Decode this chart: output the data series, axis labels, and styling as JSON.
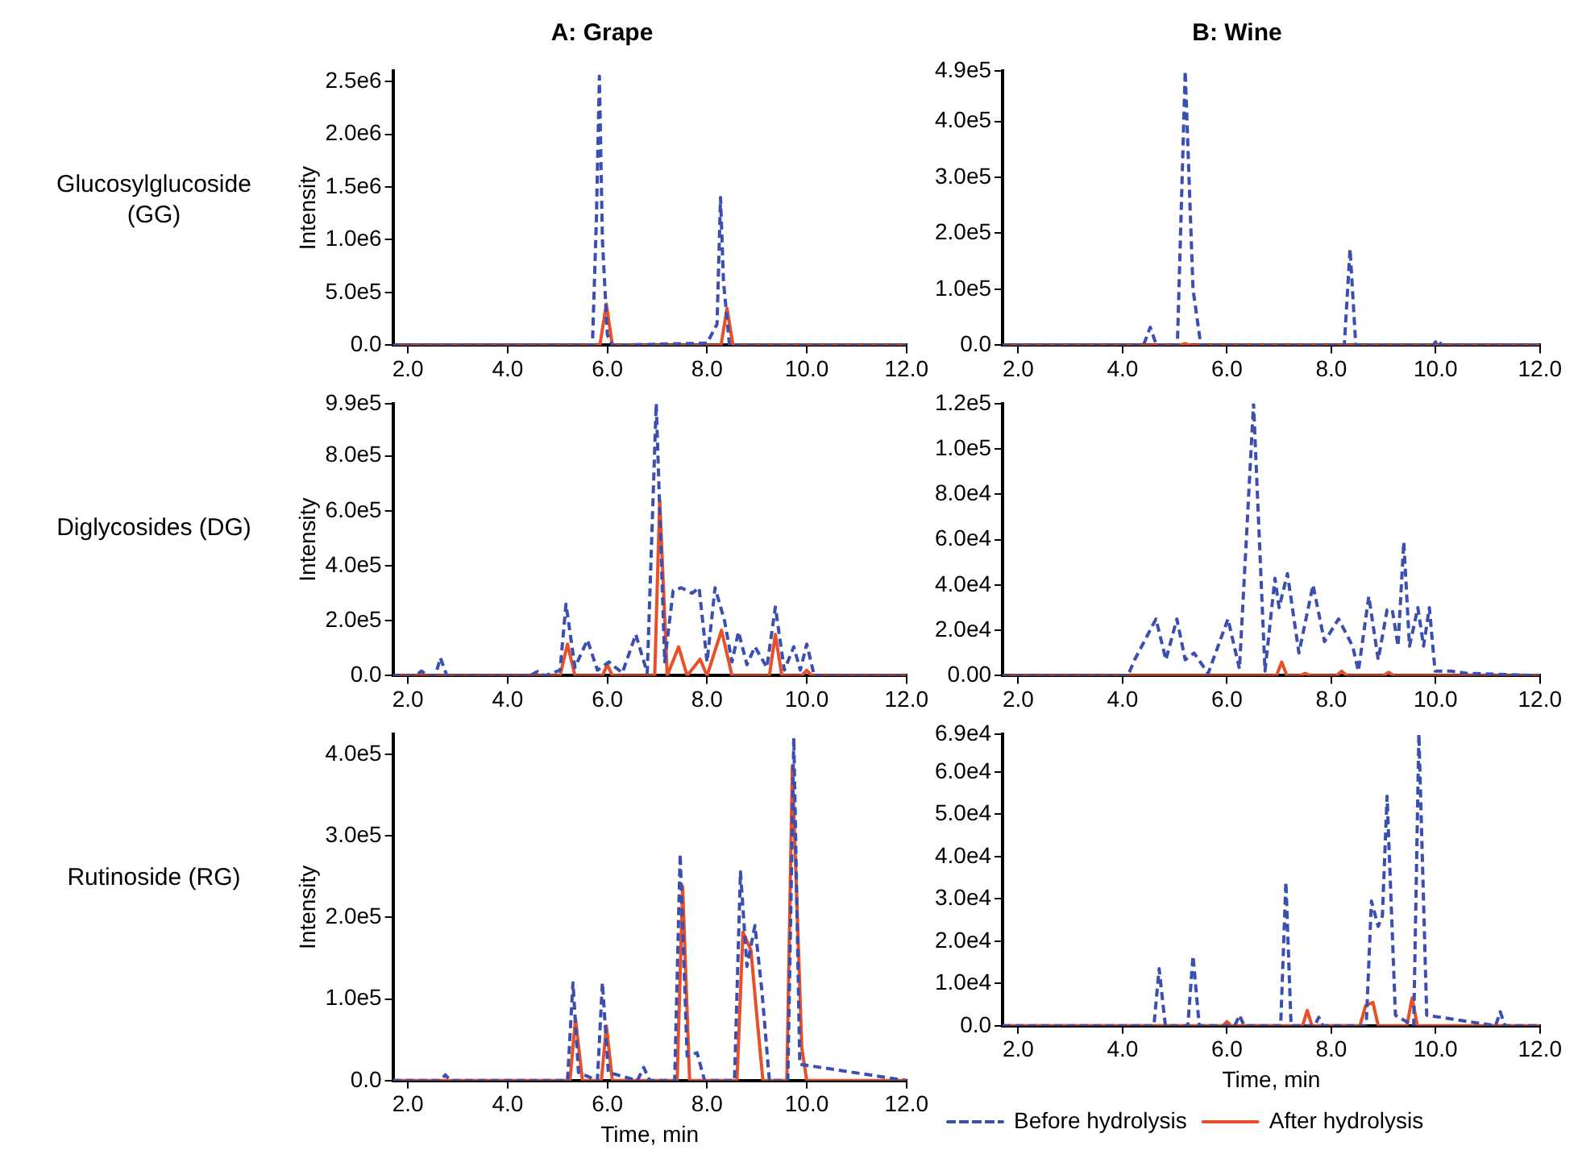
{
  "chart_data": [
    {
      "type": "line",
      "title": "A: Grape",
      "ylabel": "Intensity",
      "annotations": [
        "Glucosylglucoside (GG)"
      ],
      "xlim": [
        1.7,
        12.0
      ],
      "xticks": [
        {
          "value": 2,
          "label": "2.0"
        },
        {
          "value": 4,
          "label": "4.0"
        },
        {
          "value": 6,
          "label": "6.0"
        },
        {
          "value": 8,
          "label": "8.0"
        },
        {
          "value": 10,
          "label": "10.0"
        },
        {
          "value": 12,
          "label": "12.0"
        }
      ],
      "ylim": [
        0,
        2600000
      ],
      "yticks": [
        {
          "value": 0,
          "label": "0.0"
        },
        {
          "value": 500000,
          "label": "5.0e5"
        },
        {
          "value": 1000000,
          "label": "1.0e6"
        },
        {
          "value": 1500000,
          "label": "1.5e6"
        },
        {
          "value": 2000000,
          "label": "2.0e6"
        },
        {
          "value": 2500000,
          "label": "2.5e6"
        }
      ],
      "grid": false,
      "marker": "none",
      "series": [
        {
          "color": "#3b4fb0",
          "line_style": "dashed",
          "x": [
            1.7,
            5.7,
            5.78,
            5.84,
            5.9,
            6.0,
            6.1,
            8.0,
            8.2,
            8.27,
            8.33,
            8.45,
            12.0
          ],
          "values": [
            0,
            0,
            1200000,
            2550000,
            1000000,
            100000,
            0,
            20000,
            200000,
            1400000,
            600000,
            0,
            0
          ]
        },
        {
          "color": "#e8502a",
          "line_style": "solid",
          "x": [
            1.7,
            5.85,
            5.98,
            6.1,
            8.28,
            8.4,
            8.52,
            12.0
          ],
          "values": [
            0,
            0,
            390000,
            0,
            0,
            350000,
            0,
            0
          ]
        }
      ]
    },
    {
      "type": "line",
      "title": "B: Wine",
      "xlim": [
        1.7,
        12.0
      ],
      "xticks": [
        {
          "value": 2,
          "label": "2.0"
        },
        {
          "value": 4,
          "label": "4.0"
        },
        {
          "value": 6,
          "label": "6.0"
        },
        {
          "value": 8,
          "label": "8.0"
        },
        {
          "value": 10,
          "label": "10.0"
        },
        {
          "value": 12,
          "label": "12.0"
        }
      ],
      "ylim": [
        0,
        490000
      ],
      "yticks": [
        {
          "value": 0,
          "label": "0.0"
        },
        {
          "value": 100000,
          "label": "1.0e5"
        },
        {
          "value": 200000,
          "label": "2.0e5"
        },
        {
          "value": 300000,
          "label": "3.0e5"
        },
        {
          "value": 400000,
          "label": "4.0e5"
        },
        {
          "value": 490000,
          "label": "4.9e5"
        }
      ],
      "grid": false,
      "marker": "none",
      "series": [
        {
          "color": "#3b4fb0",
          "line_style": "dashed",
          "x": [
            1.7,
            4.4,
            4.53,
            4.65,
            5.05,
            5.2,
            5.35,
            5.5,
            8.25,
            8.36,
            8.47,
            9.95,
            10.04,
            10.12,
            12.0
          ],
          "values": [
            0,
            0,
            32000,
            0,
            0,
            490000,
            100000,
            0,
            0,
            172000,
            0,
            0,
            10000,
            0,
            0
          ]
        },
        {
          "color": "#e8502a",
          "line_style": "solid",
          "x": [
            1.7,
            5.1,
            5.2,
            5.3,
            12.0
          ],
          "values": [
            0,
            0,
            3000,
            0,
            0
          ]
        }
      ]
    },
    {
      "type": "line",
      "ylabel": "Intensity",
      "annotations": [
        "Diglycosides (DG)"
      ],
      "xlim": [
        1.7,
        12.0
      ],
      "xticks": [
        {
          "value": 2,
          "label": "2.0"
        },
        {
          "value": 4,
          "label": "4.0"
        },
        {
          "value": 6,
          "label": "6.0"
        },
        {
          "value": 8,
          "label": "8.0"
        },
        {
          "value": 10,
          "label": "10.0"
        },
        {
          "value": 12,
          "label": "12.0"
        }
      ],
      "ylim": [
        0,
        990000
      ],
      "yticks": [
        {
          "value": 0,
          "label": "0.0"
        },
        {
          "value": 200000,
          "label": "2.0e5"
        },
        {
          "value": 400000,
          "label": "4.0e5"
        },
        {
          "value": 600000,
          "label": "6.0e5"
        },
        {
          "value": 800000,
          "label": "8.0e5"
        },
        {
          "value": 990000,
          "label": "9.9e5"
        }
      ],
      "grid": false,
      "marker": "none",
      "series": [
        {
          "color": "#3b4fb0",
          "line_style": "dashed",
          "x": [
            1.7,
            2.15,
            2.27,
            2.4,
            2.55,
            2.65,
            2.78,
            4.45,
            4.6,
            4.75,
            5.05,
            5.17,
            5.35,
            5.6,
            5.8,
            6.03,
            6.3,
            6.57,
            6.8,
            6.98,
            7.15,
            7.32,
            7.48,
            7.7,
            7.84,
            8.0,
            8.16,
            8.35,
            8.5,
            8.63,
            8.8,
            8.96,
            9.2,
            9.37,
            9.55,
            9.74,
            9.87,
            10.0,
            10.15,
            12.0
          ],
          "values": [
            0,
            0,
            17000,
            0,
            0,
            65000,
            0,
            0,
            15000,
            0,
            20000,
            260000,
            30000,
            130000,
            20000,
            50000,
            10000,
            150000,
            10000,
            990000,
            50000,
            310000,
            320000,
            300000,
            320000,
            50000,
            320000,
            200000,
            50000,
            160000,
            40000,
            105000,
            30000,
            250000,
            20000,
            105000,
            20000,
            115000,
            0,
            0
          ]
        },
        {
          "color": "#e8502a",
          "line_style": "solid",
          "x": [
            1.7,
            5.05,
            5.2,
            5.35,
            5.9,
            6.0,
            6.1,
            6.95,
            7.05,
            7.2,
            7.43,
            7.6,
            7.86,
            8.0,
            8.29,
            8.5,
            9.25,
            9.37,
            9.5,
            9.9,
            10.0,
            10.1,
            12.0
          ],
          "values": [
            0,
            0,
            115000,
            0,
            0,
            40000,
            0,
            0,
            640000,
            0,
            105000,
            0,
            60000,
            0,
            165000,
            0,
            0,
            150000,
            0,
            0,
            20000,
            0,
            0
          ]
        }
      ]
    },
    {
      "type": "line",
      "xlim": [
        1.7,
        12.0
      ],
      "xticks": [
        {
          "value": 2,
          "label": "2.0"
        },
        {
          "value": 4,
          "label": "4.0"
        },
        {
          "value": 6,
          "label": "6.0"
        },
        {
          "value": 8,
          "label": "8.0"
        },
        {
          "value": 10,
          "label": "10.0"
        },
        {
          "value": 12,
          "label": "12.0"
        }
      ],
      "ylim": [
        0,
        120000
      ],
      "yticks": [
        {
          "value": 0,
          "label": "0.00"
        },
        {
          "value": 20000,
          "label": "2.0e4"
        },
        {
          "value": 40000,
          "label": "4.0e4"
        },
        {
          "value": 60000,
          "label": "6.0e4"
        },
        {
          "value": 80000,
          "label": "8.0e4"
        },
        {
          "value": 100000,
          "label": "1.0e5"
        },
        {
          "value": 120000,
          "label": "1.2e5"
        }
      ],
      "grid": false,
      "marker": "none",
      "series": [
        {
          "color": "#3b4fb0",
          "line_style": "dashed",
          "x": [
            1.7,
            4.1,
            4.23,
            4.64,
            4.83,
            5.04,
            5.2,
            5.37,
            5.64,
            6.02,
            6.24,
            6.51,
            6.73,
            6.92,
            7.0,
            7.16,
            7.38,
            7.65,
            7.87,
            8.14,
            8.41,
            8.52,
            8.72,
            8.9,
            9.07,
            9.17,
            9.28,
            9.39,
            9.5,
            9.66,
            9.77,
            9.88,
            9.99,
            10.3,
            10.6,
            12.0
          ],
          "values": [
            0,
            0,
            7000,
            25000,
            7000,
            25000,
            7000,
            10000,
            1000,
            25000,
            3000,
            120000,
            2000,
            43000,
            30000,
            45000,
            10000,
            40000,
            15000,
            25000,
            13000,
            2000,
            35000,
            7000,
            29000,
            29000,
            13000,
            59000,
            13000,
            30000,
            13000,
            30000,
            2000,
            2000,
            1000,
            0
          ]
        },
        {
          "color": "#e8502a",
          "line_style": "solid",
          "x": [
            1.7,
            6.95,
            7.05,
            7.15,
            7.4,
            7.5,
            7.6,
            8.1,
            8.2,
            8.3,
            9.0,
            9.1,
            9.2,
            12.0
          ],
          "values": [
            0,
            0,
            6000,
            0,
            0,
            1000,
            0,
            0,
            2000,
            0,
            0,
            1500,
            0,
            0
          ]
        }
      ]
    },
    {
      "type": "line",
      "ylabel": "Intensity",
      "xlabel": "Time, min",
      "annotations": [
        "Rutinoside (RG)"
      ],
      "xlim": [
        1.7,
        12.0
      ],
      "xticks": [
        {
          "value": 2,
          "label": "2.0"
        },
        {
          "value": 4,
          "label": "4.0"
        },
        {
          "value": 6,
          "label": "6.0"
        },
        {
          "value": 8,
          "label": "8.0"
        },
        {
          "value": 10,
          "label": "10.0"
        },
        {
          "value": 12,
          "label": "12.0"
        }
      ],
      "ylim": [
        0,
        425000
      ],
      "yticks": [
        {
          "value": 0,
          "label": "0.0"
        },
        {
          "value": 100000,
          "label": "1.0e5"
        },
        {
          "value": 200000,
          "label": "2.0e5"
        },
        {
          "value": 300000,
          "label": "3.0e5"
        },
        {
          "value": 400000,
          "label": "4.0e5"
        }
      ],
      "grid": false,
      "marker": "none",
      "series": [
        {
          "color": "#3b4fb0",
          "line_style": "dashed",
          "x": [
            1.7,
            2.65,
            2.75,
            2.85,
            5.2,
            5.31,
            5.42,
            5.8,
            5.9,
            6.02,
            6.6,
            6.73,
            6.85,
            7.35,
            7.46,
            7.6,
            7.8,
            7.95,
            8.55,
            8.67,
            8.8,
            8.96,
            9.1,
            9.25,
            9.62,
            9.74,
            9.86,
            12.0
          ],
          "values": [
            0,
            0,
            7000,
            0,
            0,
            120000,
            10000,
            0,
            120000,
            10000,
            0,
            16000,
            0,
            0,
            278000,
            30000,
            34000,
            0,
            0,
            256000,
            140000,
            190000,
            110000,
            0,
            0,
            420000,
            20000,
            0
          ]
        },
        {
          "color": "#e8502a",
          "line_style": "solid",
          "x": [
            1.7,
            5.25,
            5.36,
            5.5,
            5.88,
            5.98,
            6.1,
            7.4,
            7.51,
            7.65,
            8.6,
            8.72,
            8.88,
            8.99,
            9.12,
            9.6,
            9.71,
            9.9,
            10.0,
            12.0
          ],
          "values": [
            0,
            0,
            76000,
            0,
            0,
            67000,
            0,
            0,
            238000,
            0,
            0,
            182000,
            160000,
            85000,
            0,
            0,
            386000,
            40000,
            0,
            0
          ]
        }
      ]
    },
    {
      "type": "line",
      "xlabel": "Time, min",
      "legend": "bottom",
      "xlim": [
        1.7,
        12.0
      ],
      "xticks": [
        {
          "value": 2,
          "label": "2.0"
        },
        {
          "value": 4,
          "label": "4.0"
        },
        {
          "value": 6,
          "label": "6.0"
        },
        {
          "value": 8,
          "label": "8.0"
        },
        {
          "value": 10,
          "label": "10.0"
        },
        {
          "value": 12,
          "label": "12.0"
        }
      ],
      "ylim": [
        0,
        69000
      ],
      "yticks": [
        {
          "value": 0,
          "label": "0.0"
        },
        {
          "value": 10000,
          "label": "1.0e4"
        },
        {
          "value": 20000,
          "label": "2.0e4"
        },
        {
          "value": 30000,
          "label": "3.0e4"
        },
        {
          "value": 40000,
          "label": "4.0e4"
        },
        {
          "value": 50000,
          "label": "5.0e4"
        },
        {
          "value": 60000,
          "label": "6.0e4"
        },
        {
          "value": 69000,
          "label": "6.9e4"
        }
      ],
      "grid": false,
      "marker": "none",
      "series": [
        {
          "name": "Before hydrolysis",
          "color": "#3b4fb0",
          "line_style": "dashed",
          "x": [
            1.7,
            4.6,
            4.7,
            4.82,
            5.25,
            5.35,
            5.47,
            6.15,
            6.24,
            6.33,
            7.03,
            7.13,
            7.23,
            7.68,
            7.76,
            7.84,
            8.67,
            8.77,
            8.9,
            8.98,
            9.07,
            9.23,
            9.58,
            9.68,
            9.83,
            11.15,
            11.24,
            11.33,
            12.0
          ],
          "values": [
            0,
            0,
            13500,
            0,
            0,
            16500,
            0,
            0,
            2500,
            0,
            0,
            34000,
            0,
            0,
            2000,
            0,
            0,
            29500,
            23500,
            26000,
            54300,
            2500,
            0,
            69000,
            2500,
            0,
            3300,
            0,
            0
          ]
        },
        {
          "name": "After hydrolysis",
          "color": "#e8502a",
          "line_style": "solid",
          "x": [
            1.7,
            5.92,
            6.0,
            6.08,
            7.45,
            7.54,
            7.63,
            8.55,
            8.66,
            8.8,
            8.9,
            9.45,
            9.55,
            9.65,
            12.0
          ],
          "values": [
            0,
            0,
            1000,
            0,
            0,
            3600,
            0,
            0,
            4800,
            5500,
            0,
            0,
            6600,
            0,
            0
          ]
        }
      ]
    }
  ]
}
